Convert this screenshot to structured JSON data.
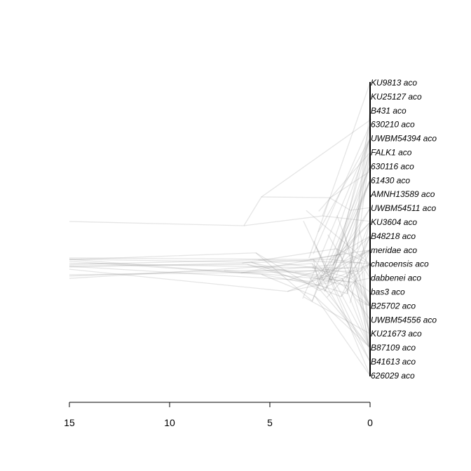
{
  "figure": {
    "type": "densitree-phylogeny",
    "tips": [
      "KU9813 aco",
      "KU25127 aco",
      "B431 aco",
      "630210 aco",
      "UWBM54394 aco",
      "FALK1 aco",
      "630116 aco",
      "61430 aco",
      "AMNH13589 aco",
      "UWBM54511 aco",
      "KU3604 aco",
      "B48218 aco",
      "meridae aco",
      "chacoensis aco",
      "dabbenei aco",
      "bas3 aco",
      "B25702 aco",
      "UWBM54556 aco",
      "KU21673 aco",
      "B87109 aco",
      "B41613 aco",
      "626029 aco"
    ],
    "axis": {
      "ticks": [
        {
          "value": 15,
          "label": "15"
        },
        {
          "value": 10,
          "label": "10"
        },
        {
          "value": 5,
          "label": "5"
        },
        {
          "value": 0,
          "label": "0"
        }
      ],
      "range": [
        15,
        0
      ],
      "direction": "reversed"
    },
    "line_color": "#888888"
  }
}
